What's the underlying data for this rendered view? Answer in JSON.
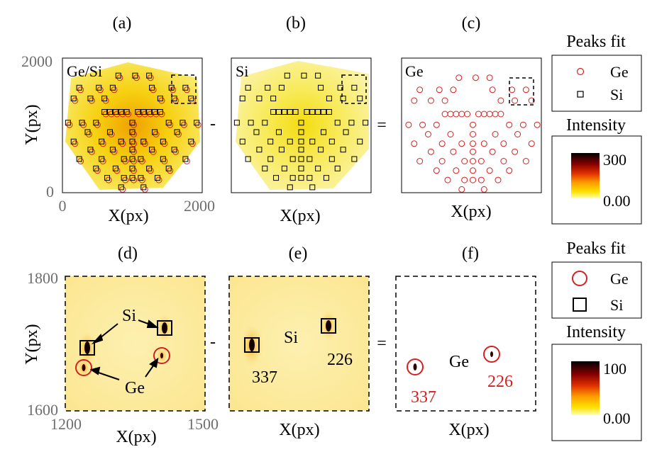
{
  "figure": {
    "panels": {
      "a": {
        "label": "(a)",
        "tag": "Ge/Si",
        "xlabel": "X(px)",
        "ylabel": "Y(px)",
        "xticks": [
          "0",
          "2000"
        ],
        "yticks": [
          "2000",
          "0"
        ]
      },
      "b": {
        "label": "(b)",
        "tag": "Si",
        "xlabel": "X(px)"
      },
      "c": {
        "label": "(c)",
        "tag": "Ge",
        "xlabel": "X(px)"
      },
      "d": {
        "label": "(d)",
        "xlabel": "X(px)",
        "ylabel": "Y(px)",
        "xticks": [
          "1200",
          "1500"
        ],
        "yticks": [
          "1800",
          "1600"
        ],
        "annot_si": "Si",
        "annot_ge": "Ge"
      },
      "e": {
        "label": "(e)",
        "xlabel": "X(px)",
        "tag": "Si",
        "peak1": "337",
        "peak2": "226"
      },
      "f": {
        "label": "(f)",
        "xlabel": "X(px)",
        "tag": "Ge",
        "peak1": "337",
        "peak2": "226"
      }
    },
    "operators": {
      "minus": "-",
      "equals": "="
    },
    "legend_top": {
      "title": "Peaks fit",
      "ge": "Ge",
      "si": "Si"
    },
    "colorbar_top": {
      "title": "Intensity",
      "max": "300",
      "min": "0.00"
    },
    "legend_bottom": {
      "title": "Peaks fit",
      "ge": "Ge",
      "si": "Si"
    },
    "colorbar_bottom": {
      "title": "Intensity",
      "max": "100",
      "min": "0.00"
    },
    "colors": {
      "ge_marker": "#d42020",
      "si_marker": "#000000",
      "tick_text": "#6e6e6e"
    }
  }
}
